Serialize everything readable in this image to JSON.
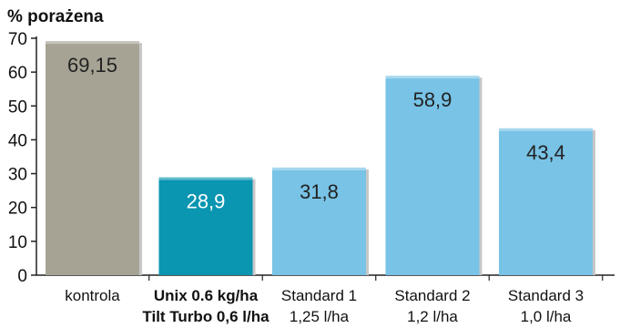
{
  "chart_data": {
    "type": "bar",
    "title": "",
    "ylabel": "% porażena",
    "xlabel": "",
    "ylim": [
      0,
      70
    ],
    "yticks": [
      0,
      10,
      20,
      30,
      40,
      50,
      60,
      70
    ],
    "grid": false,
    "bars": [
      {
        "category_lines": [
          "kontrola"
        ],
        "value": 69.15,
        "label": "69,15",
        "color": "#a6a394",
        "label_color": "#222222",
        "bold_category": false
      },
      {
        "category_lines": [
          "Unix 0.6 kg/ha",
          "Tilt Turbo 0,6 l/ha"
        ],
        "value": 28.9,
        "label": "28,9",
        "color": "#0a95b1",
        "label_color": "#ffffff",
        "bold_category": true
      },
      {
        "category_lines": [
          "Standard 1",
          "1,25 l/ha"
        ],
        "value": 31.8,
        "label": "31,8",
        "color": "#78c3e6",
        "label_color": "#222222",
        "bold_category": false
      },
      {
        "category_lines": [
          "Standard 2",
          "1,2 l/ha"
        ],
        "value": 58.9,
        "label": "58,9",
        "color": "#78c3e6",
        "label_color": "#222222",
        "bold_category": false
      },
      {
        "category_lines": [
          "Standard 3",
          "1,0 l/ha"
        ],
        "value": 43.4,
        "label": "43,4",
        "color": "#78c3e6",
        "label_color": "#222222",
        "bold_category": false
      }
    ]
  }
}
